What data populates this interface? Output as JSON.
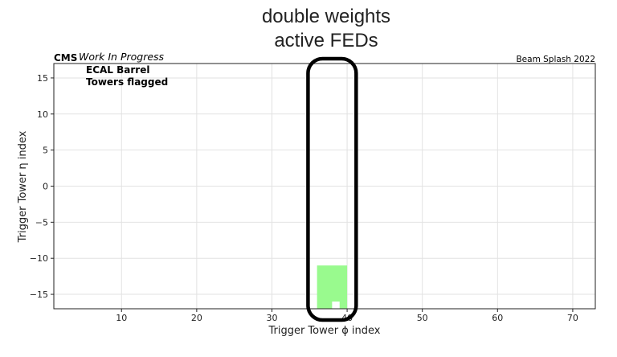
{
  "annotation": {
    "line1": "double weights",
    "line2": "active FEDs"
  },
  "header": {
    "cms": "CMS",
    "status": "Work In Progress",
    "right": "Beam Splash 2022"
  },
  "inset": {
    "line1": "ECAL Barrel",
    "line2": "Towers flagged"
  },
  "colors": {
    "flagged": "#99fa8e",
    "highlight": "#000000"
  },
  "chart_data": {
    "type": "heatmap",
    "xlabel": "Trigger Tower ϕ index",
    "ylabel": "Trigger Tower η index",
    "xlim": [
      1,
      73
    ],
    "ylim": [
      -17,
      17
    ],
    "xticks": [
      10,
      20,
      30,
      40,
      50,
      60,
      70
    ],
    "yticks": [
      15,
      10,
      5,
      0,
      -5,
      -10,
      -15
    ],
    "grid": true,
    "flagged_region": {
      "phi_range": [
        36,
        40
      ],
      "eta_range": [
        -17,
        -11
      ]
    },
    "unflagged_cell": {
      "phi_range": [
        38,
        39
      ],
      "eta_range": [
        -17,
        -16
      ]
    },
    "highlight_phi_range": [
      34.8,
      41.2
    ]
  }
}
